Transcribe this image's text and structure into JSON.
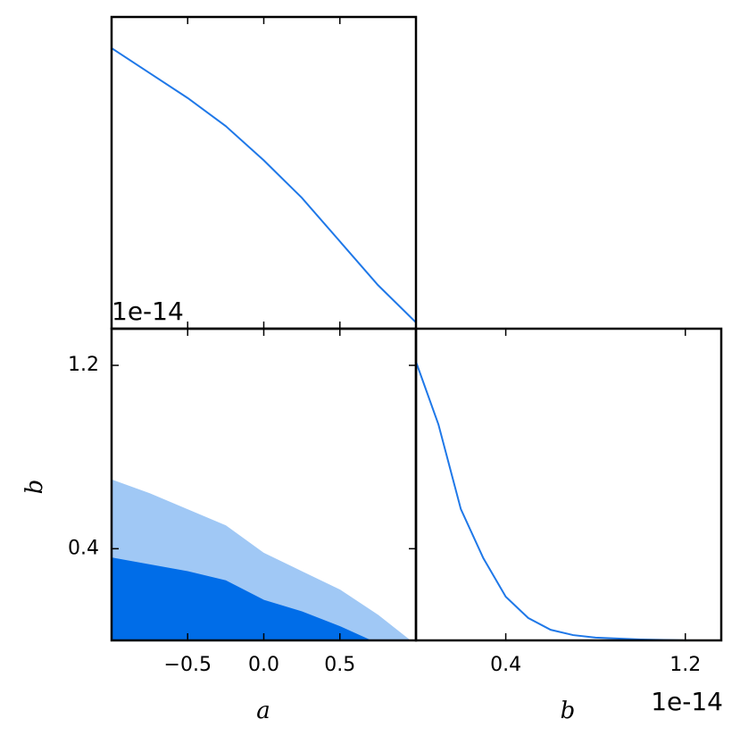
{
  "chart_data": [
    {
      "type": "line",
      "xlim": [
        -1,
        1
      ],
      "ylim": [
        0,
        1
      ],
      "xticks": [
        -0.5,
        0,
        0.5
      ],
      "x": [
        -1,
        -0.75,
        -0.5,
        -0.25,
        0,
        0.25,
        0.5,
        0.75,
        1
      ],
      "series": [
        {
          "color": "#1f78e8",
          "values": [
            0.9,
            0.82,
            0.74,
            0.65,
            0.54,
            0.42,
            0.28,
            0.14,
            0.02
          ]
        }
      ]
    },
    {
      "type": "area",
      "xlabel": "a",
      "ylabel": "b",
      "xlim": [
        -1,
        1
      ],
      "ylim": [
        0,
        1.36
      ],
      "xticks": [
        {
          "value": -0.5,
          "label": "−0.5"
        },
        {
          "value": 0,
          "label": "0.0"
        },
        0.5
      ],
      "yticks": [
        0.4,
        1.2
      ],
      "y_offset_label": "1e-14",
      "series": [
        {
          "color": "#a0c8f5",
          "x": [
            -1,
            -0.75,
            -0.5,
            -0.25,
            0,
            0.25,
            0.5,
            0.75,
            0.96
          ],
          "values": [
            0.7,
            0.64,
            0.57,
            0.5,
            0.38,
            0.3,
            0.22,
            0.11,
            0
          ]
        },
        {
          "color": "#006de8",
          "x": [
            -1,
            -0.5,
            -0.25,
            0,
            0.25,
            0.5,
            0.7
          ],
          "values": [
            0.36,
            0.3,
            0.26,
            0.175,
            0.125,
            0.06,
            0
          ]
        }
      ]
    },
    {
      "type": "line",
      "xlabel": "b",
      "xlim": [
        0,
        1.36
      ],
      "ylim": [
        0,
        1
      ],
      "xticks": [
        0.4,
        1.2
      ],
      "x_offset_label": "1e-14",
      "x": [
        0,
        0.1,
        0.2,
        0.3,
        0.4,
        0.5,
        0.6,
        0.7,
        0.8,
        1.0,
        1.2,
        1.36
      ],
      "series": [
        {
          "color": "#1f78e8",
          "values": [
            0.894,
            0.693,
            0.421,
            0.264,
            0.14,
            0.072,
            0.034,
            0.017,
            0.009,
            0.003,
            0,
            0
          ]
        }
      ]
    }
  ]
}
